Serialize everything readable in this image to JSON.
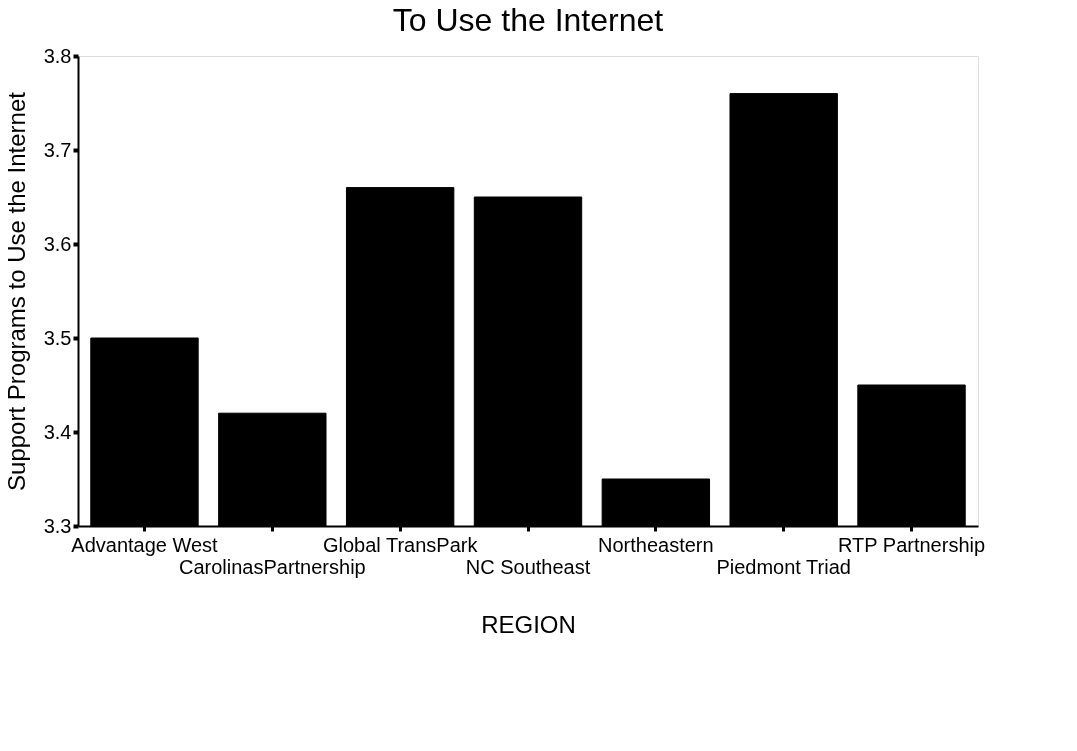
{
  "chart_data": {
    "type": "bar",
    "title": "To Use the Internet",
    "xlabel": "REGION",
    "ylabel": "Support Programs to Use the Internet",
    "categories": [
      "Advantage West",
      "CarolinasPartnership",
      "Global TransPark",
      "NC Southeast",
      "Northeastern",
      "Piedmont Triad",
      "RTP Partnership"
    ],
    "values": [
      3.5,
      3.42,
      3.66,
      3.65,
      3.35,
      3.76,
      3.45
    ],
    "color": "#000000",
    "ylim": [
      3.3,
      3.8
    ],
    "yticks": [
      3.3,
      3.4,
      3.5,
      3.6,
      3.7,
      3.8
    ],
    "grid": false
  }
}
